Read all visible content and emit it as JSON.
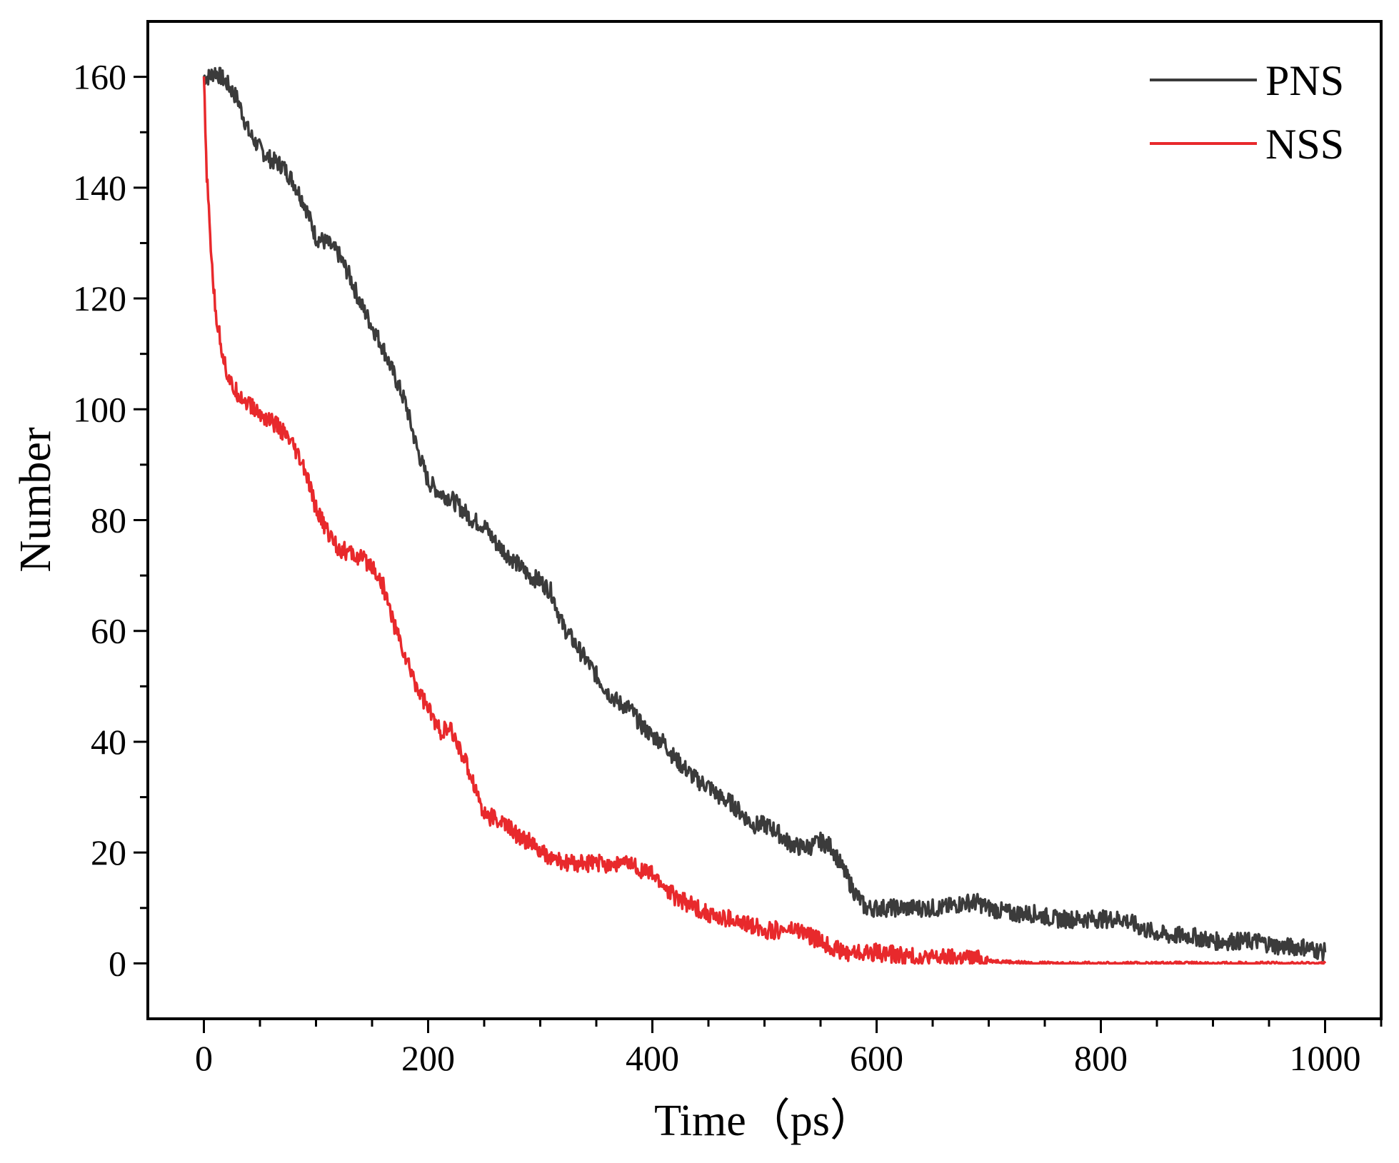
{
  "chart_data": {
    "type": "line",
    "title": "",
    "xlabel": "Time（ps）",
    "ylabel": "Number",
    "xlim": [
      -50,
      1050
    ],
    "ylim": [
      -10,
      170
    ],
    "xticks": [
      0,
      200,
      400,
      600,
      800,
      1000
    ],
    "yticks": [
      0,
      20,
      40,
      60,
      80,
      100,
      120,
      140,
      160
    ],
    "x_minor_step": 50,
    "y_minor_step": 10,
    "grid": false,
    "legend_position": "top-right",
    "series": [
      {
        "name": "PNS",
        "color": "#3b3b3b",
        "x": [
          0,
          5,
          10,
          20,
          30,
          40,
          50,
          60,
          70,
          80,
          90,
          100,
          110,
          120,
          130,
          140,
          150,
          160,
          170,
          180,
          190,
          200,
          210,
          220,
          230,
          240,
          250,
          260,
          270,
          280,
          290,
          300,
          310,
          320,
          330,
          340,
          350,
          360,
          370,
          380,
          390,
          400,
          410,
          420,
          430,
          440,
          450,
          460,
          470,
          480,
          490,
          500,
          510,
          520,
          530,
          540,
          550,
          560,
          570,
          580,
          590,
          600,
          620,
          640,
          660,
          680,
          690,
          700,
          720,
          740,
          760,
          780,
          800,
          810,
          820,
          840,
          860,
          880,
          900,
          920,
          940,
          960,
          980,
          1000
        ],
        "values": [
          160,
          160,
          161,
          159,
          156,
          150,
          147,
          145,
          144,
          141,
          137,
          131,
          130,
          128,
          124,
          119,
          115,
          111,
          106,
          101,
          93,
          87,
          85,
          84,
          82,
          80,
          79,
          76,
          74,
          72,
          70,
          69,
          67,
          61,
          58,
          55,
          52,
          49,
          47,
          46,
          43,
          41,
          40,
          37,
          35,
          33,
          32,
          30,
          29,
          27,
          25,
          25,
          24,
          22,
          21,
          21,
          22,
          21,
          17,
          13,
          10,
          10,
          10,
          10,
          10,
          11,
          11,
          10,
          9,
          9,
          8,
          8,
          8,
          8,
          8,
          6,
          5,
          5,
          4,
          4,
          4,
          3,
          3,
          2
        ]
      },
      {
        "name": "NSS",
        "color": "#e8292c",
        "x": [
          0,
          2,
          5,
          8,
          10,
          15,
          20,
          25,
          30,
          40,
          50,
          60,
          70,
          80,
          90,
          100,
          110,
          120,
          130,
          140,
          150,
          160,
          170,
          180,
          190,
          200,
          210,
          220,
          230,
          240,
          250,
          260,
          270,
          280,
          290,
          300,
          310,
          320,
          330,
          340,
          350,
          360,
          370,
          380,
          390,
          400,
          410,
          420,
          430,
          440,
          450,
          460,
          470,
          480,
          490,
          500,
          510,
          520,
          530,
          540,
          550,
          560,
          570,
          580,
          600,
          620,
          640,
          660,
          680,
          700,
          740,
          1000
        ],
        "values": [
          160,
          145,
          133,
          124,
          118,
          112,
          107,
          104,
          103,
          101,
          99,
          98,
          96,
          93,
          89,
          82,
          78,
          75,
          74,
          73,
          72,
          68,
          61,
          55,
          50,
          46,
          42,
          42,
          38,
          33,
          27,
          26,
          25,
          23,
          22,
          20,
          19,
          18,
          18,
          18,
          18,
          18,
          18,
          18,
          17,
          16,
          14,
          12,
          11,
          10,
          9,
          8,
          8,
          7,
          7,
          6,
          6,
          6,
          6,
          5,
          4,
          3,
          2,
          2,
          2,
          1.5,
          1,
          1,
          1,
          0.5,
          0,
          0
        ]
      }
    ]
  }
}
